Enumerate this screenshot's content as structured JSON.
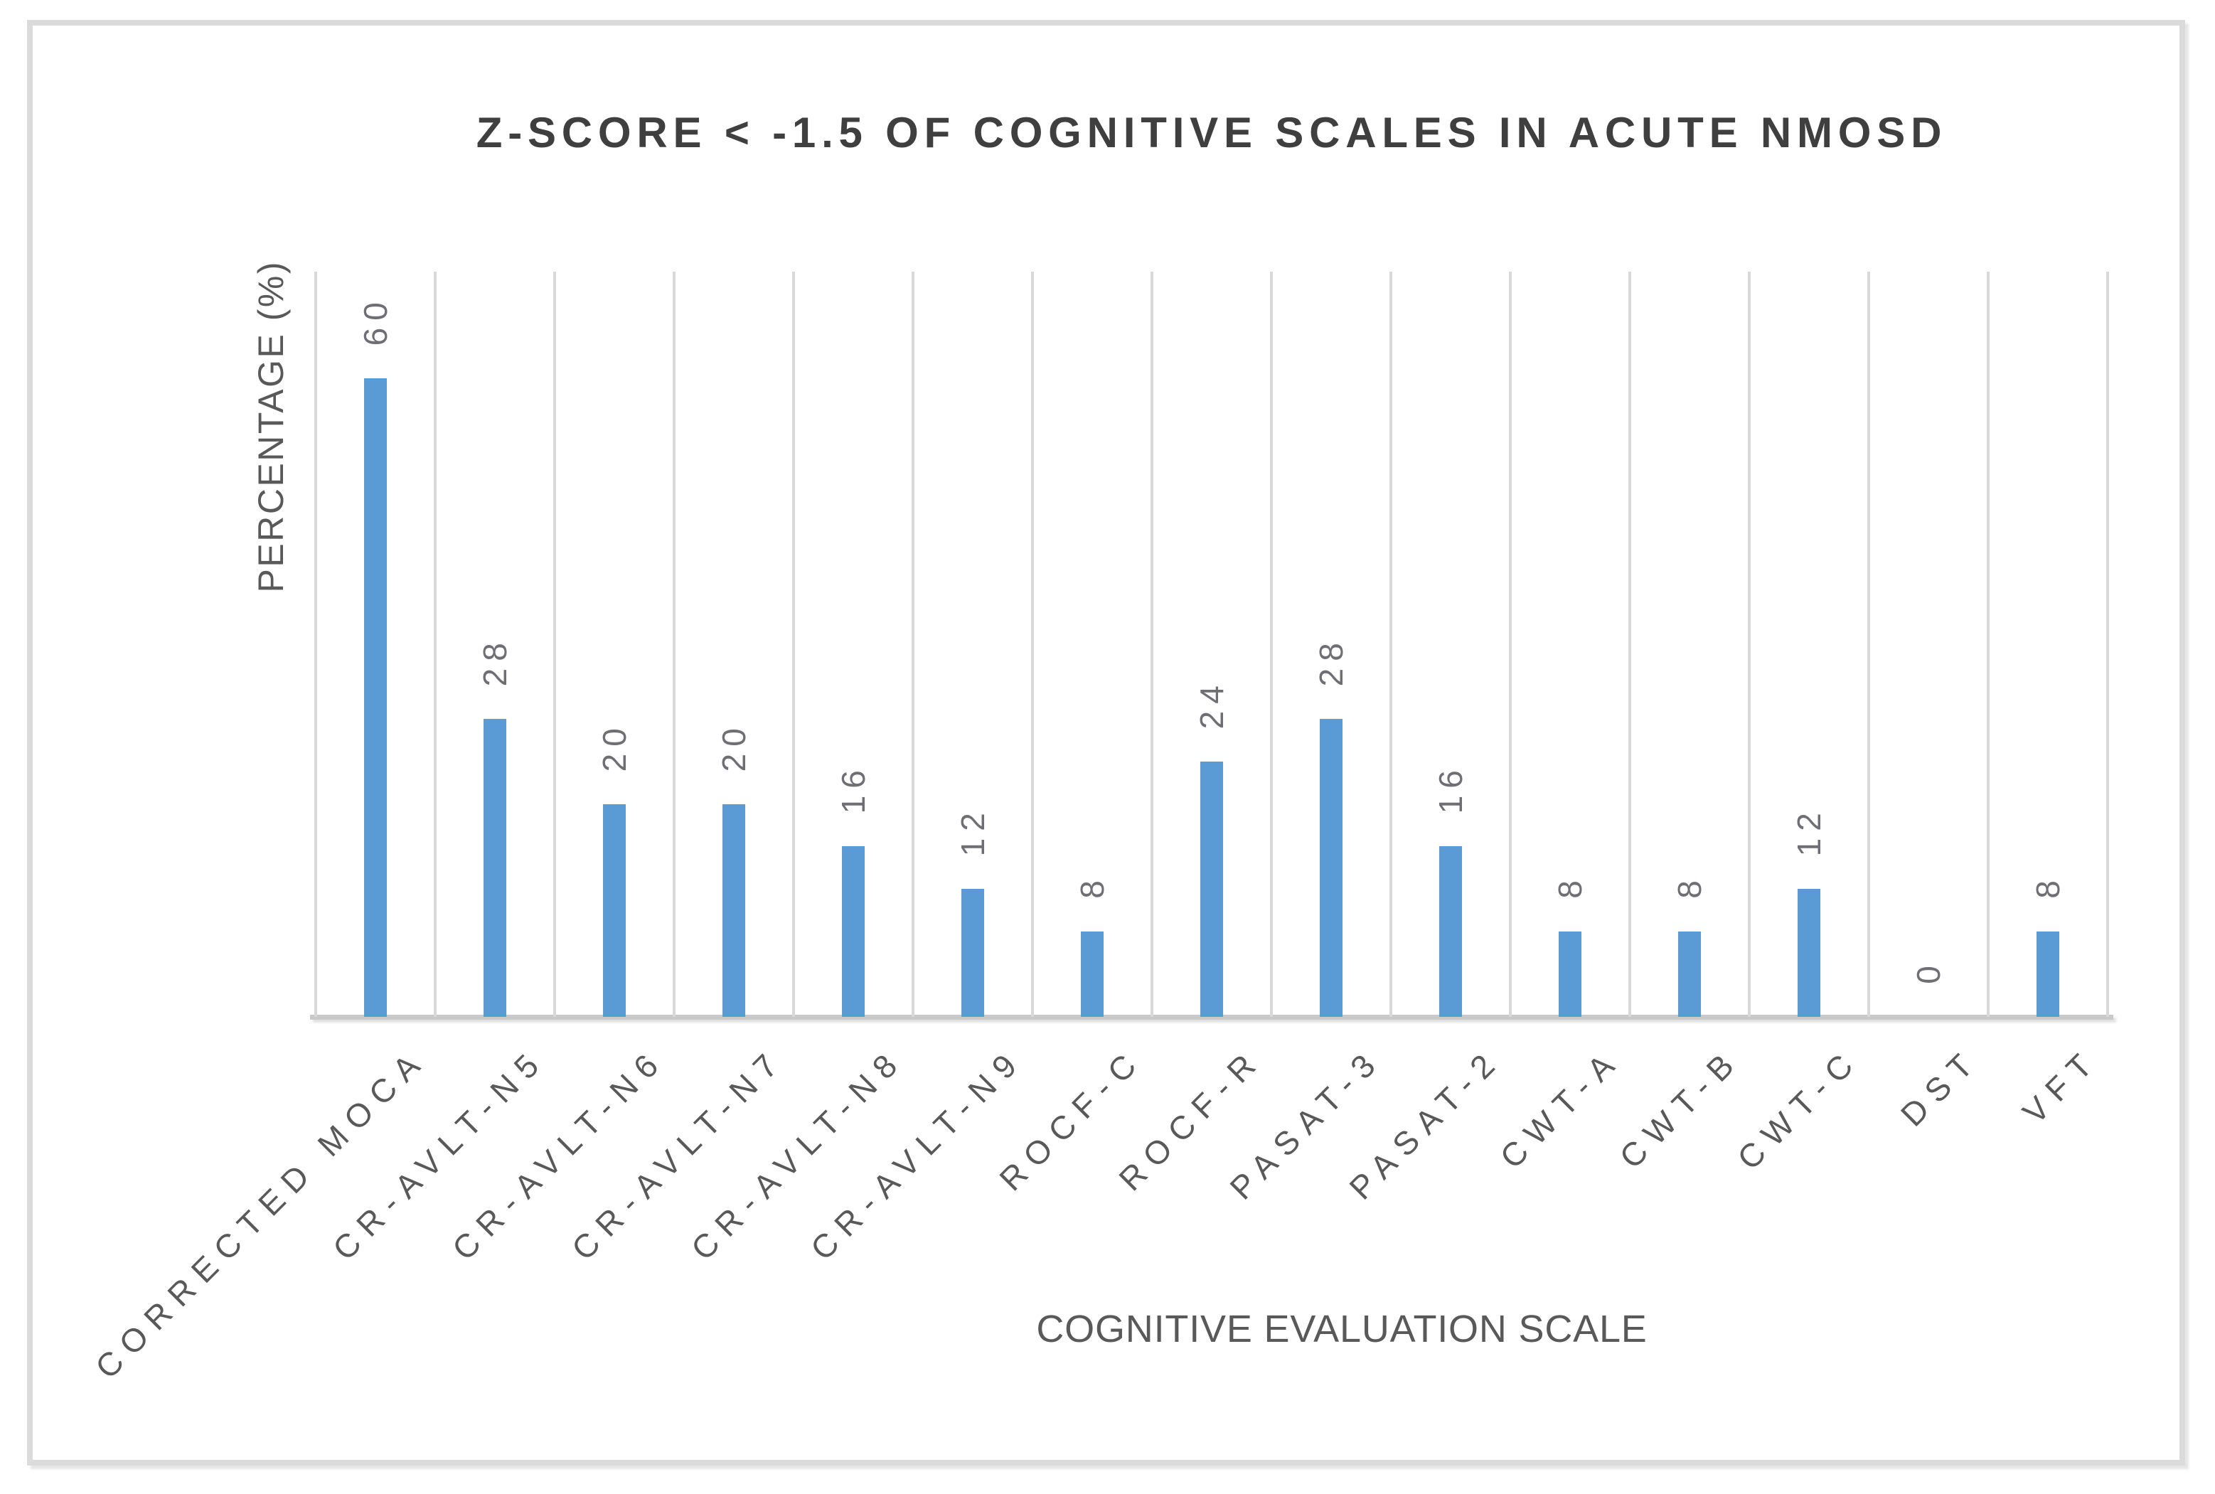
{
  "chart_data": {
    "type": "bar",
    "title": "Z-SCORE < -1.5 OF COGNITIVE SCALES IN ACUTE NMOSD",
    "xlabel": "COGNITIVE EVALUATION SCALE",
    "ylabel": "PERCENTAGE (%)",
    "categories": [
      "CORRECTED MOCA",
      "CR-AVLT-N5",
      "CR-AVLT-N6",
      "CR-AVLT-N7",
      "CR-AVLT-N8",
      "CR-AVLT-N9",
      "ROCF-C",
      "ROCF-R",
      "PASAT-3",
      "PASAT-2",
      "CWT-A",
      "CWT-B",
      "CWT-C",
      "DST",
      "VFT"
    ],
    "values": [
      60,
      28,
      20,
      20,
      16,
      12,
      8,
      24,
      28,
      16,
      8,
      8,
      12,
      0,
      8
    ],
    "data_labels": [
      "60",
      "28",
      "20",
      "20",
      "16",
      "12",
      "8",
      "24",
      "28",
      "16",
      "8",
      "8",
      "12",
      "0",
      "8"
    ],
    "ylim": [
      0,
      70
    ],
    "grid": "vertical-category-gridlines",
    "legend": "none",
    "data_label_rotation_deg": 90,
    "category_label_rotation_deg": 45,
    "colors": {
      "bar": "#5B9BD5",
      "gridline": "#D9D9D9",
      "axis_line": "#C9C9C9",
      "title_text": "#3F3F3F",
      "axis_title_text": "#595959",
      "data_label_text": "#6E6E74",
      "outer_border": "#DBDBDB",
      "background": "#FFFFFF"
    }
  }
}
